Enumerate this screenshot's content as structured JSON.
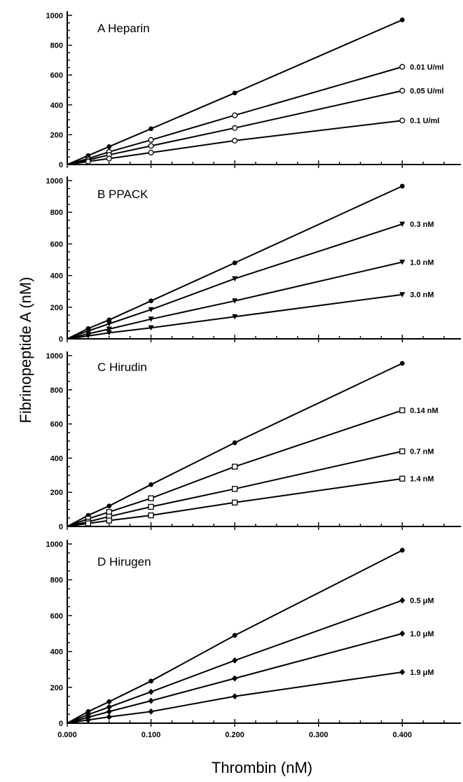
{
  "figure": {
    "ylabel": "Fibrinopeptide A (nM)",
    "xlabel": "Thrombin (nM)"
  },
  "chart_data": [
    {
      "type": "line",
      "title": "A  Heparin",
      "ylim": [
        0,
        1000
      ],
      "xlim": [
        0,
        0.47
      ],
      "yticks": [
        "0",
        "200",
        "400",
        "600",
        "800",
        "1000"
      ],
      "xticks": [
        "",
        "",
        "",
        "",
        ""
      ],
      "x": [
        0,
        0.025,
        0.05,
        0.1,
        0.2,
        0.4
      ],
      "series": [
        {
          "name": "",
          "marker": "dot",
          "values": [
            0,
            60,
            120,
            240,
            480,
            970
          ]
        },
        {
          "name": "0.01 U/ml",
          "marker": "circle",
          "values": [
            0,
            40,
            85,
            165,
            330,
            655
          ]
        },
        {
          "name": "0.05 U/ml",
          "marker": "circle",
          "values": [
            0,
            30,
            65,
            125,
            245,
            495
          ]
        },
        {
          "name": "0.1 U/ml",
          "marker": "circle",
          "values": [
            0,
            20,
            40,
            80,
            160,
            295
          ]
        }
      ]
    },
    {
      "type": "line",
      "title": "B  PPACK",
      "ylim": [
        0,
        1000
      ],
      "xlim": [
        0,
        0.47
      ],
      "yticks": [
        "0",
        "200",
        "400",
        "600",
        "800",
        "1000"
      ],
      "xticks": [
        "",
        "",
        "",
        "",
        ""
      ],
      "x": [
        0,
        0.025,
        0.05,
        0.1,
        0.2,
        0.4
      ],
      "series": [
        {
          "name": "",
          "marker": "dot",
          "values": [
            0,
            65,
            120,
            240,
            480,
            965
          ]
        },
        {
          "name": "0.3 nM",
          "marker": "tri-down",
          "values": [
            0,
            50,
            95,
            185,
            380,
            725
          ]
        },
        {
          "name": "1.0 nM",
          "marker": "tri-down",
          "values": [
            0,
            32,
            62,
            125,
            240,
            485
          ]
        },
        {
          "name": "3.0 nM",
          "marker": "tri-down",
          "values": [
            0,
            18,
            38,
            70,
            140,
            280
          ]
        }
      ]
    },
    {
      "type": "line",
      "title": "C  Hirudin",
      "ylim": [
        0,
        1000
      ],
      "xlim": [
        0,
        0.47
      ],
      "yticks": [
        "0",
        "200",
        "400",
        "600",
        "800",
        "1000"
      ],
      "xticks": [
        "",
        "",
        "",
        "",
        ""
      ],
      "x": [
        0,
        0.025,
        0.05,
        0.1,
        0.2,
        0.4
      ],
      "series": [
        {
          "name": "",
          "marker": "dot",
          "values": [
            0,
            65,
            120,
            245,
            490,
            955
          ]
        },
        {
          "name": "0.14 nM",
          "marker": "square",
          "values": [
            0,
            45,
            85,
            165,
            350,
            680
          ]
        },
        {
          "name": "0.7 nM",
          "marker": "square",
          "values": [
            0,
            28,
            58,
            115,
            220,
            440
          ]
        },
        {
          "name": "1.4 nM",
          "marker": "square",
          "values": [
            0,
            18,
            35,
            65,
            140,
            280
          ]
        }
      ]
    },
    {
      "type": "line",
      "title": "D  Hirugen",
      "ylim": [
        0,
        1000
      ],
      "xlim": [
        0,
        0.47
      ],
      "yticks": [
        "0",
        "200",
        "400",
        "600",
        "800",
        "1000"
      ],
      "xticks": [
        "0.000",
        "0.100",
        "0.200",
        "0.300",
        "0.400"
      ],
      "x": [
        0,
        0.025,
        0.05,
        0.1,
        0.2,
        0.4
      ],
      "series": [
        {
          "name": "",
          "marker": "dot",
          "values": [
            0,
            65,
            120,
            235,
            490,
            965
          ]
        },
        {
          "name": "0.5 μM",
          "marker": "diamond",
          "values": [
            0,
            48,
            90,
            175,
            350,
            685
          ]
        },
        {
          "name": "1.0 μM",
          "marker": "diamond",
          "values": [
            0,
            33,
            65,
            125,
            250,
            500
          ]
        },
        {
          "name": "1.9 μM",
          "marker": "diamond",
          "values": [
            0,
            18,
            35,
            65,
            150,
            285
          ]
        }
      ]
    }
  ]
}
